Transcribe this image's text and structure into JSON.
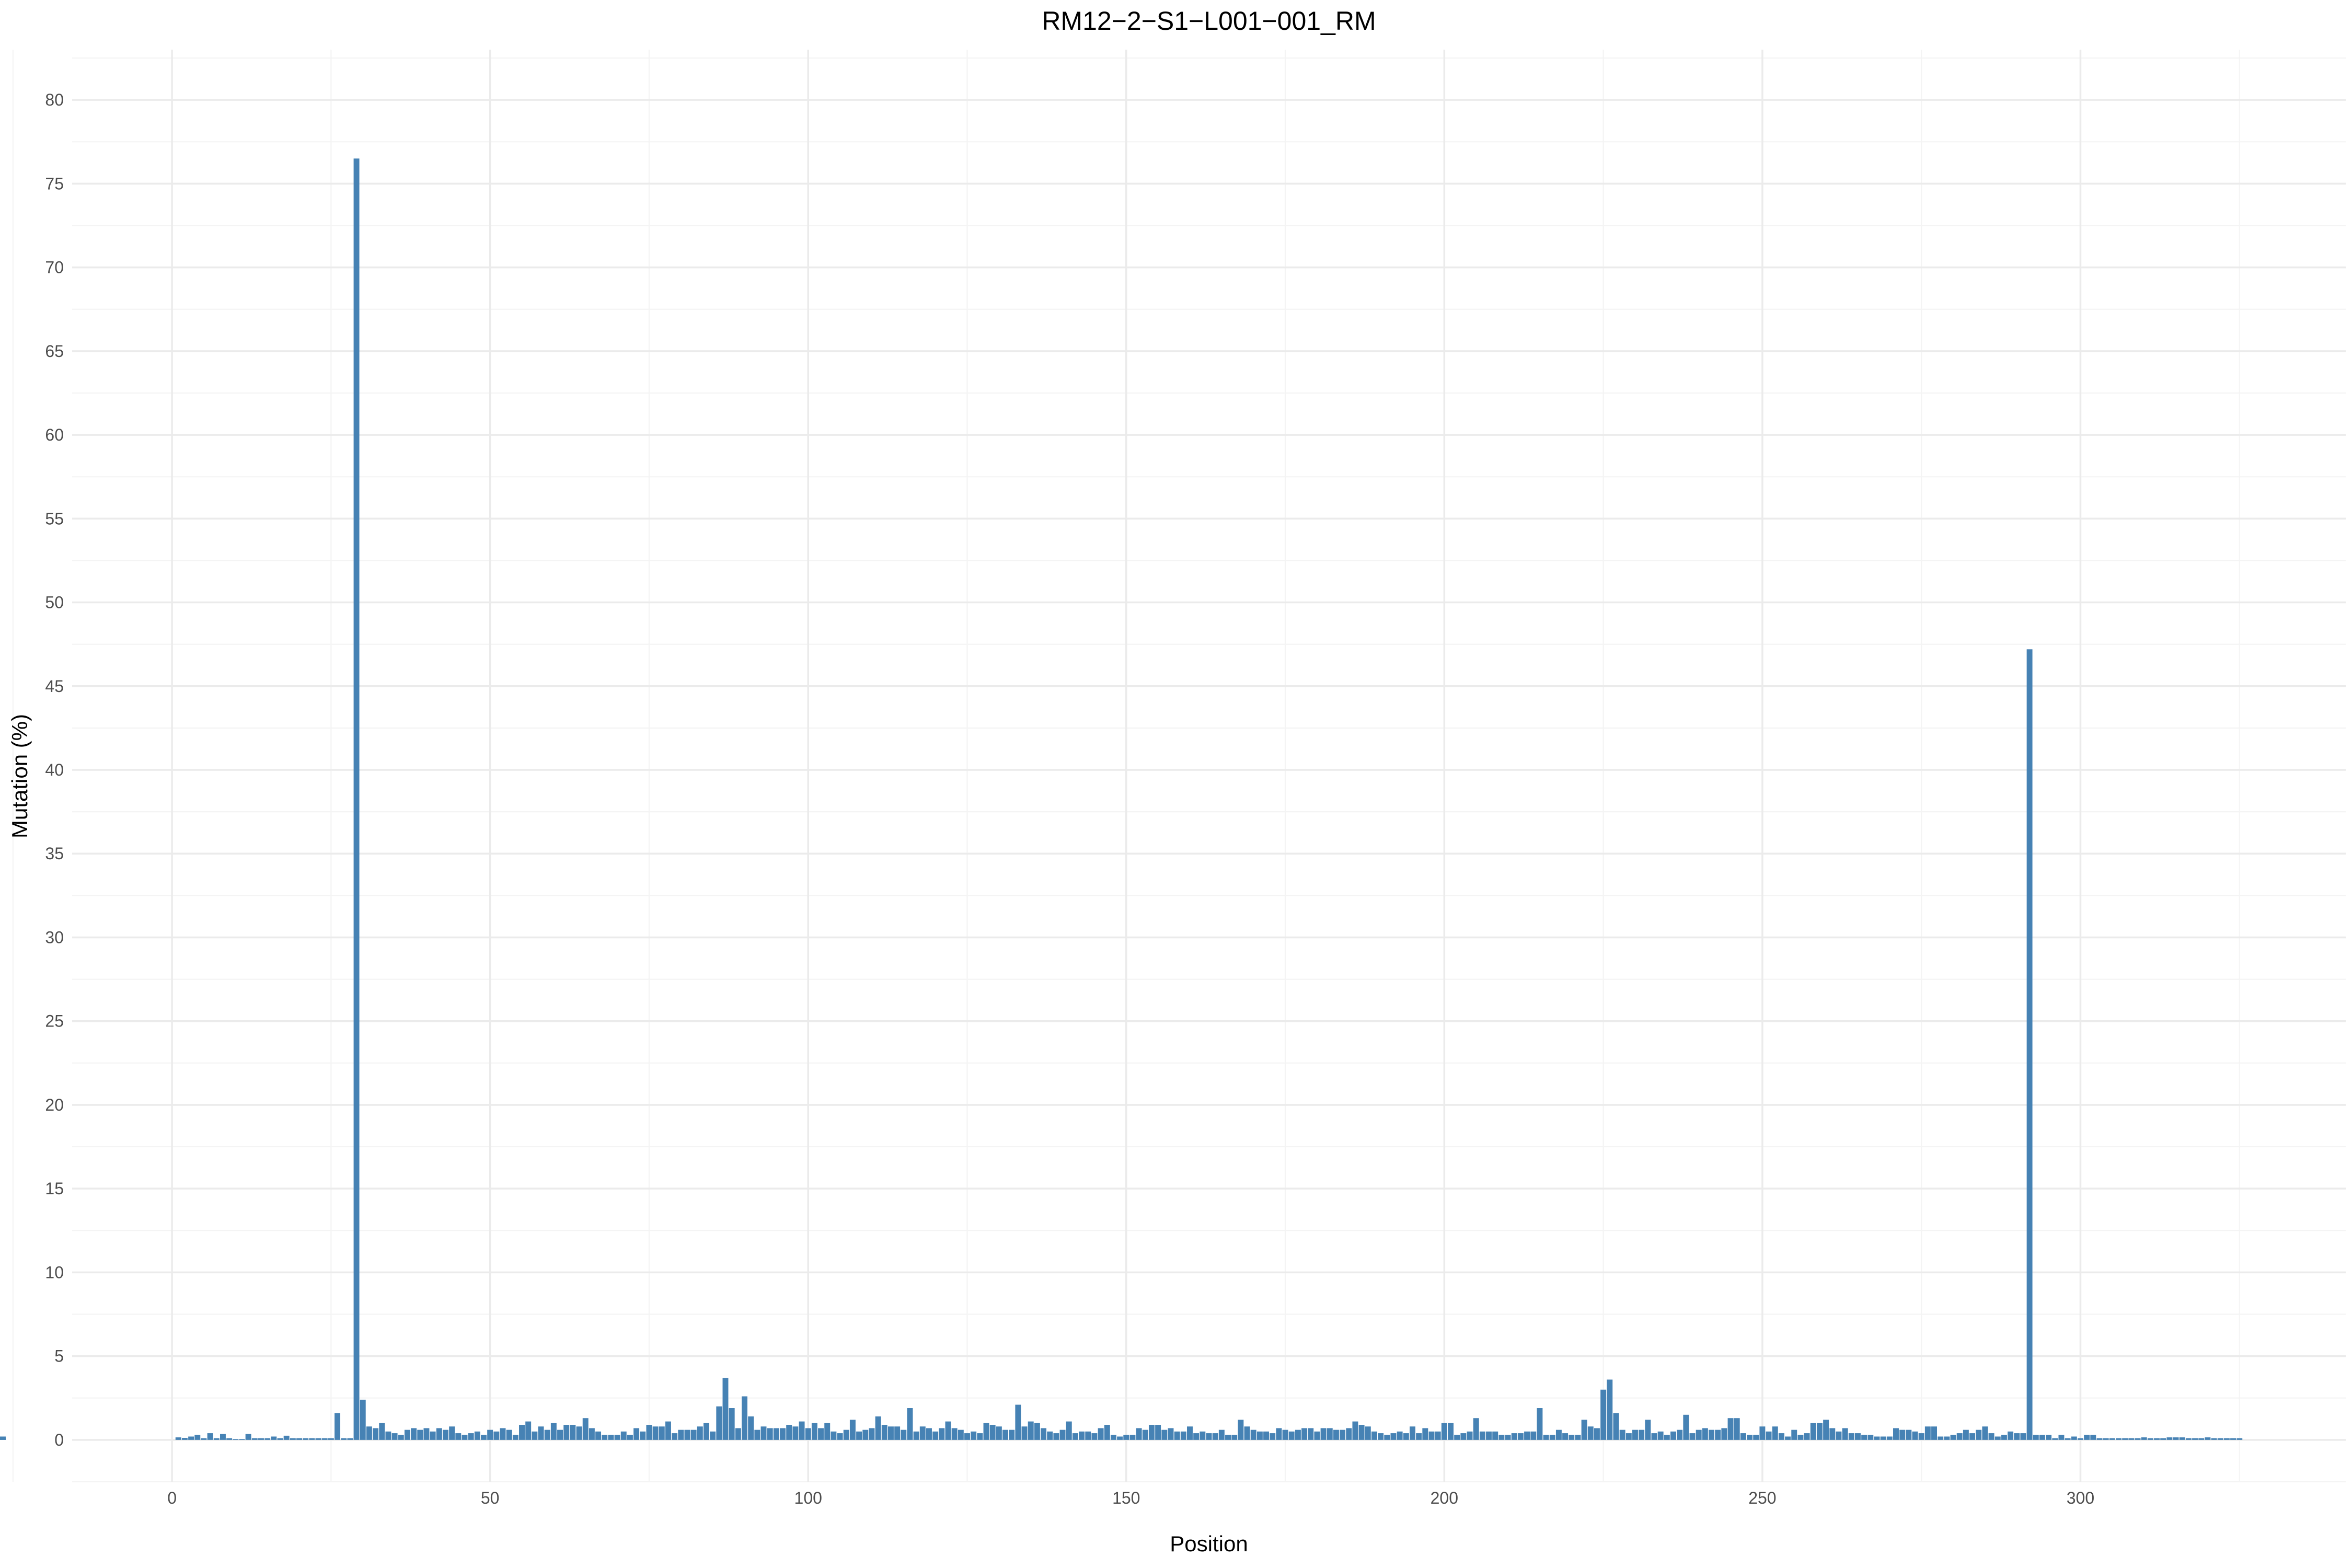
{
  "chart_data": {
    "type": "bar",
    "title": "RM12−2−S1−L001−001_RM",
    "xlabel": "Position",
    "ylabel": "Mutation (%)",
    "xlim": [
      -15.7,
      341.7
    ],
    "ylim": [
      -2.5,
      83
    ],
    "x_ticks": [
      0,
      50,
      100,
      150,
      200,
      250,
      300
    ],
    "y_ticks": [
      0,
      5,
      10,
      15,
      20,
      25,
      30,
      35,
      40,
      45,
      50,
      55,
      60,
      65,
      70,
      75,
      80
    ],
    "bar_color": "#4682b4",
    "grid": true,
    "positions": [
      1,
      2,
      3,
      4,
      5,
      6,
      7,
      8,
      9,
      10,
      11,
      12,
      13,
      14,
      15,
      16,
      17,
      18,
      19,
      20,
      21,
      22,
      23,
      24,
      25,
      26,
      27,
      28,
      29,
      30,
      31,
      32,
      33,
      34,
      35,
      36,
      37,
      38,
      39,
      40,
      41,
      42,
      43,
      44,
      45,
      46,
      47,
      48,
      49,
      50,
      51,
      52,
      53,
      54,
      55,
      56,
      57,
      58,
      59,
      60,
      61,
      62,
      63,
      64,
      65,
      66,
      67,
      68,
      69,
      70,
      71,
      72,
      73,
      74,
      75,
      76,
      77,
      78,
      79,
      80,
      81,
      82,
      83,
      84,
      85,
      86,
      87,
      88,
      89,
      90,
      91,
      92,
      93,
      94,
      95,
      96,
      97,
      98,
      99,
      100,
      101,
      102,
      103,
      104,
      105,
      106,
      107,
      108,
      109,
      110,
      111,
      112,
      113,
      114,
      115,
      116,
      117,
      118,
      119,
      120,
      121,
      122,
      123,
      124,
      125,
      126,
      127,
      128,
      129,
      130,
      131,
      132,
      133,
      134,
      135,
      136,
      137,
      138,
      139,
      140,
      141,
      142,
      143,
      144,
      145,
      146,
      147,
      148,
      149,
      150,
      151,
      152,
      153,
      154,
      155,
      156,
      157,
      158,
      159,
      160,
      161,
      162,
      163,
      164,
      165,
      166,
      167,
      168,
      169,
      170,
      171,
      172,
      173,
      174,
      175,
      176,
      177,
      178,
      179,
      180,
      181,
      182,
      183,
      184,
      185,
      186,
      187,
      188,
      189,
      190,
      191,
      192,
      193,
      194,
      195,
      196,
      197,
      198,
      199,
      200,
      201,
      202,
      203,
      204,
      205,
      206,
      207,
      208,
      209,
      210,
      211,
      212,
      213,
      214,
      215,
      216,
      217,
      218,
      219,
      220,
      221,
      222,
      223,
      224,
      225,
      226,
      227,
      228,
      229,
      230,
      231,
      232,
      233,
      234,
      235,
      236,
      237,
      238,
      239,
      240,
      241,
      242,
      243,
      244,
      245,
      246,
      247,
      248,
      249,
      250,
      251,
      252,
      253,
      254,
      255,
      256,
      257,
      258,
      259,
      260,
      261,
      262,
      263,
      264,
      265,
      266,
      267,
      268,
      269,
      270,
      271,
      272,
      273,
      274,
      275,
      276,
      277,
      278,
      279,
      280,
      281,
      282,
      283,
      284,
      285,
      286,
      287,
      288,
      289,
      290,
      291,
      292,
      293,
      294,
      295,
      296,
      297,
      298,
      299,
      300,
      301,
      302,
      303,
      304,
      305,
      306,
      307,
      308,
      309,
      310,
      311,
      312,
      313,
      314,
      315,
      316,
      317,
      318,
      319,
      320,
      321,
      322,
      323,
      324,
      325
    ],
    "values": [
      0.15,
      0.12,
      0.2,
      0.3,
      0.1,
      0.4,
      0.1,
      0.35,
      0.1,
      0.05,
      0.05,
      0.35,
      0.1,
      0.1,
      0.1,
      0.2,
      0.1,
      0.25,
      0.1,
      0.1,
      0.1,
      0.1,
      0.1,
      0.1,
      0.1,
      1.6,
      0.1,
      0.1,
      76.5,
      2.4,
      0.8,
      0.7,
      1.0,
      0.5,
      0.4,
      0.3,
      0.6,
      0.7,
      0.6,
      0.7,
      0.5,
      0.7,
      0.6,
      0.8,
      0.4,
      0.3,
      0.4,
      0.5,
      0.3,
      0.6,
      0.5,
      0.7,
      0.6,
      0.3,
      0.9,
      1.1,
      0.5,
      0.8,
      0.6,
      1.0,
      0.6,
      0.9,
      0.9,
      0.8,
      1.3,
      0.7,
      0.5,
      0.3,
      0.3,
      0.3,
      0.5,
      0.3,
      0.7,
      0.5,
      0.9,
      0.8,
      0.8,
      1.1,
      0.4,
      0.6,
      0.6,
      0.6,
      0.8,
      1.0,
      0.5,
      2.0,
      3.7,
      1.9,
      0.7,
      2.6,
      1.4,
      0.6,
      0.8,
      0.7,
      0.7,
      0.7,
      0.9,
      0.8,
      1.1,
      0.7,
      1.0,
      0.7,
      1.0,
      0.5,
      0.4,
      0.6,
      1.2,
      0.5,
      0.6,
      0.7,
      1.4,
      0.9,
      0.8,
      0.8,
      0.6,
      1.9,
      0.5,
      0.8,
      0.7,
      0.5,
      0.7,
      1.1,
      0.7,
      0.6,
      0.4,
      0.5,
      0.4,
      1.0,
      0.9,
      0.8,
      0.6,
      0.6,
      2.1,
      0.8,
      1.1,
      1.0,
      0.7,
      0.5,
      0.4,
      0.6,
      1.1,
      0.4,
      0.5,
      0.5,
      0.4,
      0.7,
      0.9,
      0.3,
      0.2,
      0.3,
      0.3,
      0.7,
      0.6,
      0.9,
      0.9,
      0.6,
      0.7,
      0.5,
      0.5,
      0.8,
      0.4,
      0.5,
      0.4,
      0.4,
      0.6,
      0.3,
      0.3,
      1.2,
      0.8,
      0.6,
      0.5,
      0.5,
      0.4,
      0.7,
      0.6,
      0.5,
      0.6,
      0.7,
      0.7,
      0.5,
      0.7,
      0.7,
      0.6,
      0.6,
      0.7,
      1.1,
      0.9,
      0.8,
      0.5,
      0.4,
      0.3,
      0.4,
      0.5,
      0.4,
      0.8,
      0.4,
      0.7,
      0.5,
      0.5,
      1.0,
      1.0,
      0.3,
      0.4,
      0.5,
      1.3,
      0.5,
      0.5,
      0.5,
      0.3,
      0.3,
      0.4,
      0.4,
      0.5,
      0.5,
      1.9,
      0.3,
      0.3,
      0.6,
      0.4,
      0.3,
      0.3,
      1.2,
      0.8,
      0.7,
      3.0,
      3.6,
      1.6,
      0.6,
      0.4,
      0.6,
      0.6,
      1.2,
      0.4,
      0.5,
      0.3,
      0.5,
      0.6,
      1.5,
      0.4,
      0.6,
      0.7,
      0.6,
      0.6,
      0.7,
      1.3,
      1.3,
      0.4,
      0.3,
      0.3,
      0.8,
      0.5,
      0.8,
      0.4,
      0.2,
      0.6,
      0.3,
      0.4,
      1.0,
      1.0,
      1.2,
      0.7,
      0.5,
      0.7,
      0.4,
      0.4,
      0.3,
      0.3,
      0.2,
      0.2,
      0.2,
      0.7,
      0.6,
      0.6,
      0.5,
      0.4,
      0.8,
      0.8,
      0.2,
      0.2,
      0.3,
      0.4,
      0.6,
      0.4,
      0.6,
      0.8,
      0.4,
      0.2,
      0.3,
      0.5,
      0.4,
      0.4,
      47.2,
      0.3,
      0.3,
      0.3,
      0.1,
      0.3,
      0.1,
      0.2,
      0.1,
      0.3,
      0.3,
      0.1,
      0.1,
      0.1,
      0.1,
      0.1,
      0.1,
      0.1,
      0.15,
      0.1,
      0.1,
      0.1,
      0.15,
      0.15,
      0.15,
      0.1,
      0.1,
      0.1,
      0.15,
      0.1,
      0.1,
      0.1,
      0.1,
      0.1,
      0.2,
      0.1
    ]
  }
}
